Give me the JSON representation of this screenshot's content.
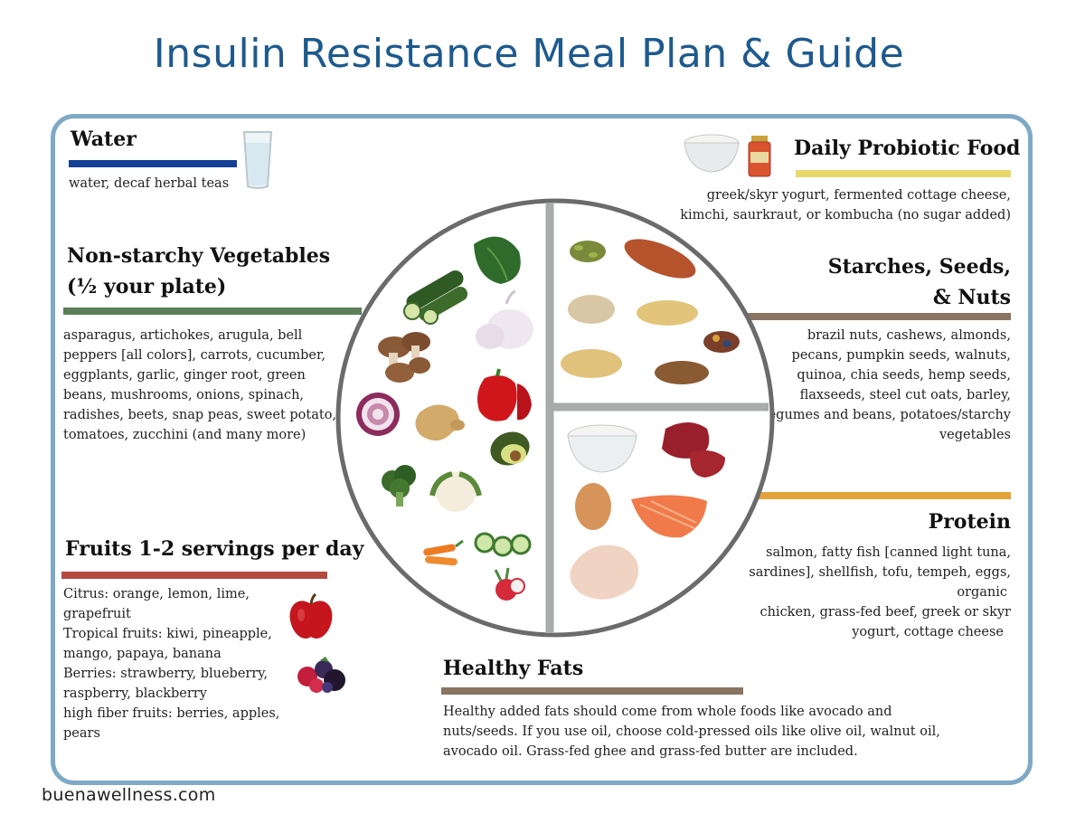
{
  "title": "Insulin Resistance Meal Plan & Guide",
  "footer": "buenawellness.com",
  "colors": {
    "title": "#1d5a8e",
    "frame": "#7ea9c6",
    "water_bar": "#153f97",
    "probiotic_bar": "#e8d86c",
    "veg_bar": "#5b7f58",
    "starch_bar": "#8a7563",
    "protein_bar": "#e3a33a",
    "fruit_bar": "#b44a3f",
    "fats_bar": "#8a7563",
    "plate_outline": "#6b6b6b",
    "plate_divider": "#a9abab"
  },
  "sections": {
    "water": {
      "heading": "Water",
      "text": "water, decaf herbal teas",
      "icon": "water-glass-icon"
    },
    "probiotic": {
      "heading": "Daily Probiotic Food",
      "lines": [
        "greek/skyr yogurt, fermented cottage cheese,",
        "kimchi, saurkraut, or kombucha (no sugar added)"
      ],
      "icons": [
        "yogurt-bowl-icon",
        "kimchi-jar-icon"
      ]
    },
    "vegetables": {
      "heading_line1": "Non-starchy Vegetables",
      "heading_line2": "(½ your plate)",
      "lines": [
        "asparagus, artichokes, arugula, bell",
        "peppers [all colors], carrots, cucumber,",
        "eggplants, garlic, ginger root, green",
        "beans, mushrooms, onions, spinach,",
        "radishes, beets, snap peas, sweet potato,",
        "tomatoes,  zucchini (and many more)"
      ]
    },
    "starches": {
      "heading_line1": "Starches, Seeds,",
      "heading_line2": "& Nuts",
      "lines": [
        "brazil nuts, cashews, almonds,",
        "pecans, pumpkin seeds, walnuts,",
        "quinoa, chia seeds, hemp seeds,",
        "flaxseeds,  steel cut oats, barley,",
        "legumes and beans, potatoes/starchy",
        "vegetables"
      ]
    },
    "protein": {
      "heading": "Protein",
      "lines": [
        "salmon, fatty fish [canned light tuna,",
        "sardines], shellfish, tofu, tempeh, eggs,",
        "organic",
        "chicken, grass-fed beef, greek or skyr",
        "yogurt, cottage cheese"
      ]
    },
    "fruits": {
      "heading": "Fruits 1-2 servings per day",
      "lines": [
        "Citrus: orange, lemon, lime,",
        "grapefruit",
        "Tropical fruits: kiwi, pineapple,",
        "mango, papaya, banana",
        "Berries: strawberry, blueberry,",
        "raspberry, blackberry",
        "high fiber fruits: berries, apples,",
        "pears"
      ],
      "icons": [
        "apple-icon",
        "mixed-berries-icon"
      ]
    },
    "fats": {
      "heading": "Healthy Fats",
      "lines": [
        "Healthy  added  fats  should  come  from  whole  foods  like  avocado  and",
        "nuts/seeds.  If you use oil, choose cold-pressed oils like olive oil, walnut oil,",
        "avocado oil.  Grass-fed ghee and grass-fed butter are included."
      ]
    }
  },
  "plate": {
    "quadrants": [
      "vegetables",
      "starches-seeds-nuts",
      "protein"
    ],
    "veg_icons": [
      "spinach-icon",
      "zucchini-icon",
      "garlic-icon",
      "mushroom-icon",
      "red-pepper-icon",
      "red-onion-icon",
      "ginger-icon",
      "avocado-icon",
      "broccoli-icon",
      "cauliflower-icon",
      "carrot-icon",
      "cucumber-icon",
      "radish-icon"
    ],
    "starch_icons": [
      "pumpkin-seeds-icon",
      "sweet-potato-icon",
      "quinoa-icon",
      "cashews-icon",
      "mixed-nuts-icon",
      "chickpeas-icon",
      "lentils-icon"
    ],
    "protein_icons": [
      "yogurt-icon",
      "beef-icon",
      "egg-icon",
      "salmon-icon",
      "chicken-icon"
    ]
  }
}
